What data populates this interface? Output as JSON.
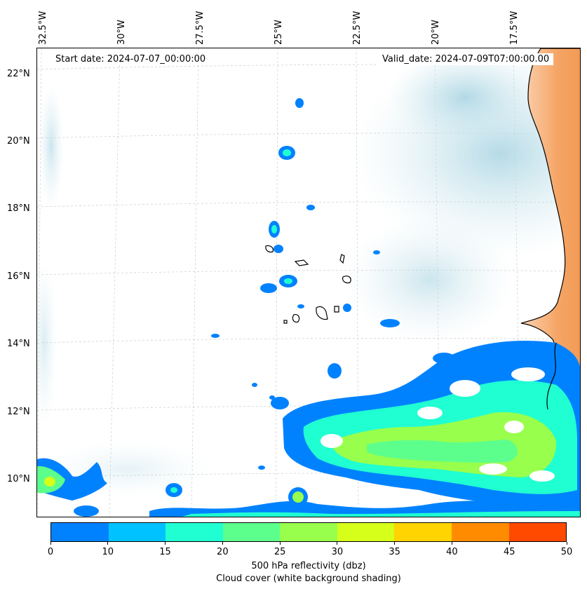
{
  "map": {
    "longitude_labels": [
      "32.5°W",
      "30°W",
      "27.5°W",
      "25°W",
      "22.5°W",
      "20°W",
      "17.5°W"
    ],
    "latitude_labels": [
      "22°N",
      "20°N",
      "18°N",
      "16°N",
      "14°N",
      "12°N",
      "10°N"
    ],
    "start_date": "Start date: 2024-07-07_00:00:00",
    "valid_date": "Valid_date: 2024-07-09T07:00:00.00"
  },
  "colorbar": {
    "ticks": [
      "0",
      "10",
      "15",
      "20",
      "25",
      "30",
      "35",
      "40",
      "45",
      "50"
    ],
    "colors": [
      "#0082ff",
      "#00c2ff",
      "#20ffd2",
      "#5cff8c",
      "#98ff4c",
      "#d6ff1a",
      "#ffd400",
      "#ff8c00",
      "#ff4a00"
    ],
    "label_line1": "500 hPa reflectivity (dbz)",
    "label_line2": "Cloud cover (white background shading)"
  },
  "colors": {
    "land": "#f5a566",
    "cloud": "#b9dde8",
    "coastline": "#000000"
  }
}
